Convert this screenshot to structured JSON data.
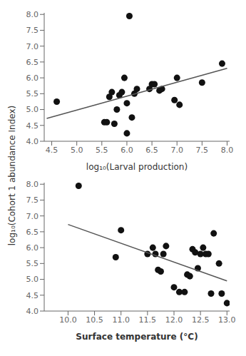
{
  "chart_data": [
    {
      "type": "scatter",
      "xlabel": "log₁₀(Larval production)",
      "ylabel": "log₁₀(Cohort 1 abundance Index)",
      "xlim": [
        4.35,
        8.05
      ],
      "ylim": [
        4.0,
        8.05
      ],
      "xticks": [
        4.5,
        {
          "value": 5.0,
          "label": "5.0"
        },
        5.5,
        {
          "value": 6.0,
          "label": "6.0"
        },
        6.5,
        {
          "value": 7.0,
          "label": "7.0"
        },
        7.5,
        {
          "value": 8.0,
          "label": "8.0"
        }
      ],
      "yticks": [
        {
          "value": 4.0,
          "label": "4.0"
        },
        4.5,
        {
          "value": 5.0,
          "label": "5.0"
        },
        5.5,
        {
          "value": 6.0,
          "label": "6.0"
        },
        6.5,
        {
          "value": 7.0,
          "label": "7.0"
        },
        7.5,
        {
          "value": 8.0,
          "label": "8.0"
        }
      ],
      "series": [
        {
          "type": "scatter",
          "color": "#111111",
          "x": [
            4.6,
            5.55,
            5.6,
            5.65,
            5.7,
            5.75,
            5.8,
            5.85,
            5.9,
            5.95,
            6.0,
            6.0,
            6.05,
            6.1,
            6.15,
            6.2,
            6.45,
            6.5,
            6.55,
            6.65,
            6.7,
            6.95,
            7.0,
            7.05,
            7.5,
            7.9
          ],
          "values": [
            5.25,
            4.6,
            4.6,
            5.4,
            5.55,
            4.55,
            5.0,
            5.45,
            5.55,
            6.0,
            4.25,
            5.2,
            7.95,
            4.75,
            5.5,
            5.65,
            5.65,
            5.8,
            5.8,
            5.6,
            5.65,
            5.3,
            6.0,
            5.15,
            5.85,
            6.45
          ]
        },
        {
          "type": "line",
          "color": "#555555",
          "x": [
            4.4,
            8.0
          ],
          "values": [
            4.72,
            6.3
          ]
        }
      ]
    },
    {
      "type": "scatter",
      "xlabel": "Surface temperature (°C)",
      "xlim": [
        9.55,
        13.05
      ],
      "ylim": [
        4.0,
        8.05
      ],
      "xticks": [
        {
          "value": 10.0,
          "label": "10.0"
        },
        10.5,
        {
          "value": 11.0,
          "label": "11.0"
        },
        11.5,
        {
          "value": 12.0,
          "label": "12.0"
        },
        12.5,
        {
          "value": 13.0,
          "label": "13.0"
        }
      ],
      "yticks": [
        {
          "value": 4.0,
          "label": "4.0"
        },
        4.5,
        {
          "value": 5.0,
          "label": "5.0"
        },
        5.5,
        {
          "value": 6.0,
          "label": "6.0"
        },
        6.5,
        {
          "value": 7.0,
          "label": "7.0"
        },
        7.5,
        {
          "value": 8.0,
          "label": "8.0"
        }
      ],
      "series": [
        {
          "type": "scatter",
          "color": "#111111",
          "x": [
            10.2,
            10.9,
            11.0,
            11.5,
            11.6,
            11.65,
            11.7,
            11.75,
            11.8,
            11.85,
            12.0,
            12.1,
            12.2,
            12.25,
            12.3,
            12.35,
            12.4,
            12.45,
            12.5,
            12.55,
            12.6,
            12.65,
            12.7,
            12.75,
            12.85,
            12.9,
            13.0
          ],
          "values": [
            7.95,
            5.7,
            6.55,
            5.8,
            6.0,
            5.8,
            5.3,
            5.25,
            5.8,
            6.05,
            4.75,
            4.6,
            4.6,
            5.15,
            5.1,
            5.95,
            5.85,
            5.35,
            5.8,
            6.0,
            5.8,
            5.8,
            4.55,
            6.45,
            5.5,
            4.55,
            4.25
          ]
        },
        {
          "type": "line",
          "color": "#555555",
          "x": [
            10.0,
            13.0
          ],
          "values": [
            6.73,
            4.95
          ]
        }
      ]
    }
  ]
}
